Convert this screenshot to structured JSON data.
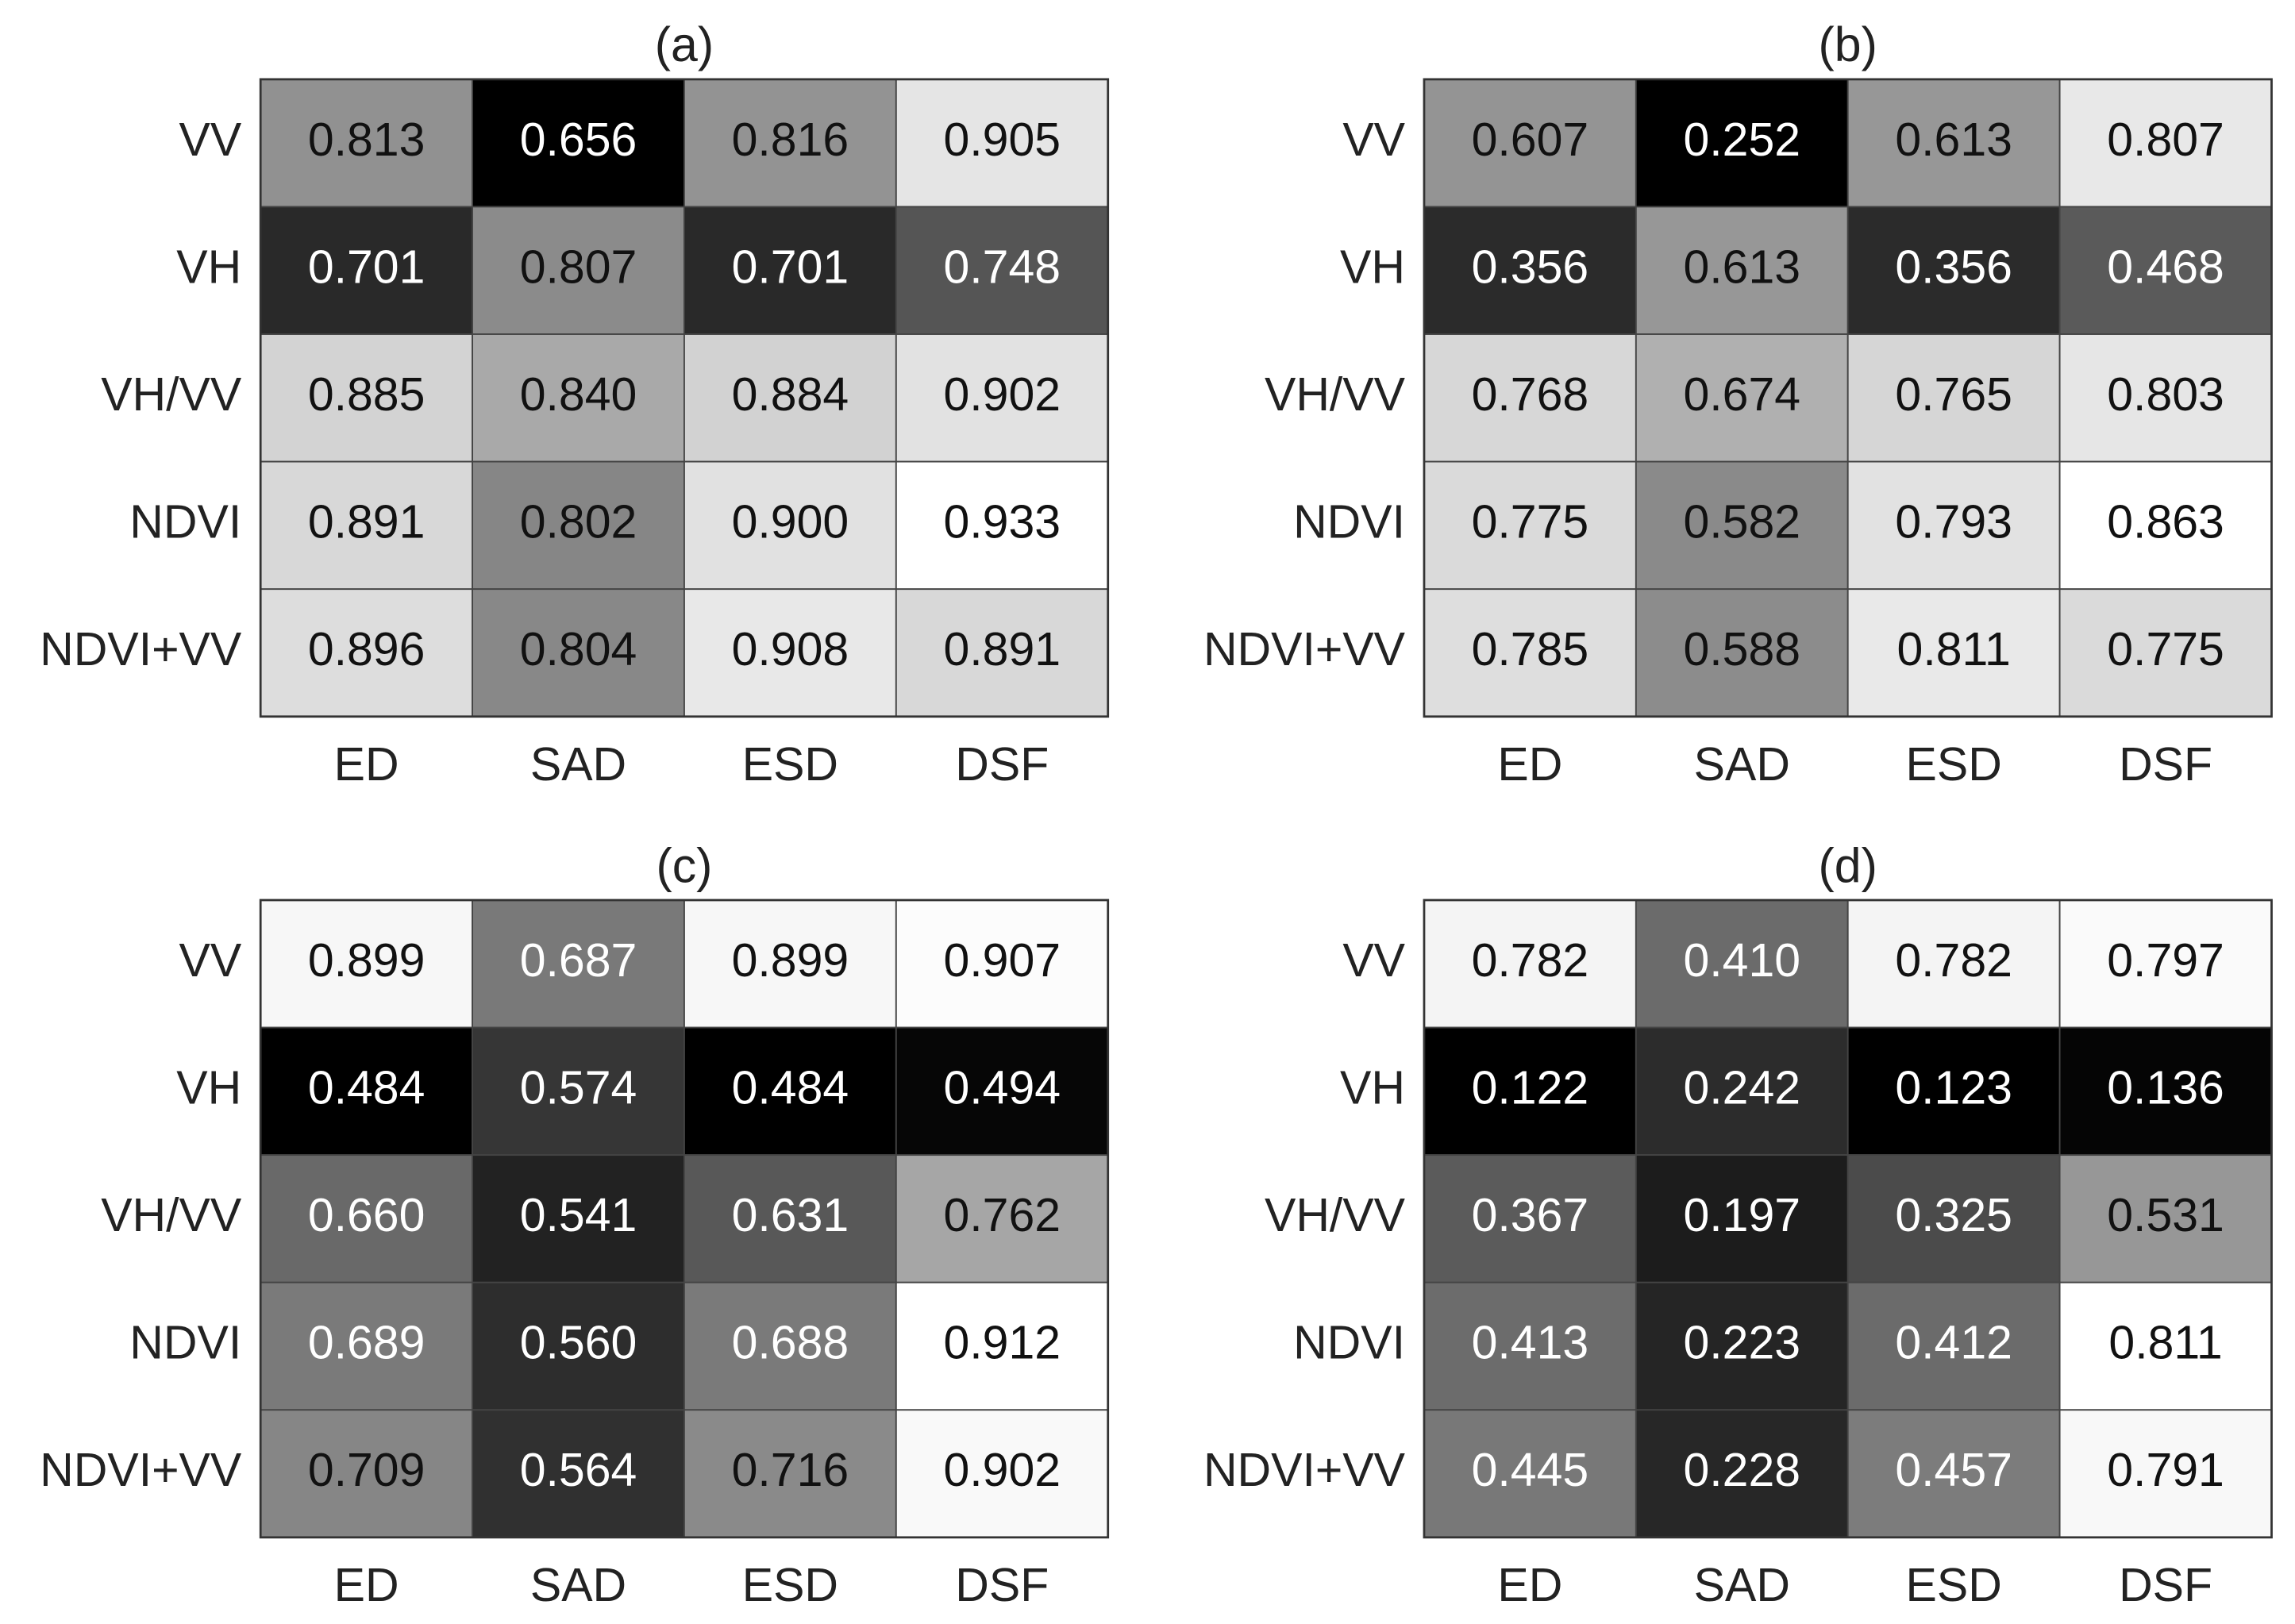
{
  "chart_data": [
    {
      "type": "heatmap",
      "title": "(a)",
      "colormap": "gray",
      "x_categories": [
        "ED",
        "SAD",
        "ESD",
        "DSF"
      ],
      "y_categories": [
        "VV",
        "VH",
        "VH/VV",
        "NDVI",
        "NDVI+VV"
      ],
      "values": [
        [
          0.813,
          0.656,
          0.816,
          0.905
        ],
        [
          0.701,
          0.807,
          0.701,
          0.748
        ],
        [
          0.885,
          0.84,
          0.884,
          0.902
        ],
        [
          0.891,
          0.802,
          0.9,
          0.933
        ],
        [
          0.896,
          0.804,
          0.908,
          0.891
        ]
      ],
      "value_labels": [
        [
          "0.813",
          "0.656",
          "0.816",
          "0.905"
        ],
        [
          "0.701",
          "0.807",
          "0.701",
          "0.748"
        ],
        [
          "0.885",
          "0.840",
          "0.884",
          "0.902"
        ],
        [
          "0.891",
          "0.802",
          "0.900",
          "0.933"
        ],
        [
          "0.896",
          "0.804",
          "0.908",
          "0.891"
        ]
      ]
    },
    {
      "type": "heatmap",
      "title": "(b)",
      "colormap": "gray",
      "x_categories": [
        "ED",
        "SAD",
        "ESD",
        "DSF"
      ],
      "y_categories": [
        "VV",
        "VH",
        "VH/VV",
        "NDVI",
        "NDVI+VV"
      ],
      "values": [
        [
          0.607,
          0.252,
          0.613,
          0.807
        ],
        [
          0.356,
          0.613,
          0.356,
          0.468
        ],
        [
          0.768,
          0.674,
          0.765,
          0.803
        ],
        [
          0.775,
          0.582,
          0.793,
          0.863
        ],
        [
          0.785,
          0.588,
          0.811,
          0.775
        ]
      ],
      "value_labels": [
        [
          "0.607",
          "0.252",
          "0.613",
          "0.807"
        ],
        [
          "0.356",
          "0.613",
          "0.356",
          "0.468"
        ],
        [
          "0.768",
          "0.674",
          "0.765",
          "0.803"
        ],
        [
          "0.775",
          "0.582",
          "0.793",
          "0.863"
        ],
        [
          "0.785",
          "0.588",
          "0.811",
          "0.775"
        ]
      ]
    },
    {
      "type": "heatmap",
      "title": "(c)",
      "colormap": "gray",
      "x_categories": [
        "ED",
        "SAD",
        "ESD",
        "DSF"
      ],
      "y_categories": [
        "VV",
        "VH",
        "VH/VV",
        "NDVI",
        "NDVI+VV"
      ],
      "values": [
        [
          0.899,
          0.687,
          0.899,
          0.907
        ],
        [
          0.484,
          0.574,
          0.484,
          0.494
        ],
        [
          0.66,
          0.541,
          0.631,
          0.762
        ],
        [
          0.689,
          0.56,
          0.688,
          0.912
        ],
        [
          0.709,
          0.564,
          0.716,
          0.902
        ]
      ],
      "value_labels": [
        [
          "0.899",
          "0.687",
          "0.899",
          "0.907"
        ],
        [
          "0.484",
          "0.574",
          "0.484",
          "0.494"
        ],
        [
          "0.660",
          "0.541",
          "0.631",
          "0.762"
        ],
        [
          "0.689",
          "0.560",
          "0.688",
          "0.912"
        ],
        [
          "0.709",
          "0.564",
          "0.716",
          "0.902"
        ]
      ]
    },
    {
      "type": "heatmap",
      "title": "(d)",
      "colormap": "gray",
      "x_categories": [
        "ED",
        "SAD",
        "ESD",
        "DSF"
      ],
      "y_categories": [
        "VV",
        "VH",
        "VH/VV",
        "NDVI",
        "NDVI+VV"
      ],
      "values": [
        [
          0.782,
          0.41,
          0.782,
          0.797
        ],
        [
          0.122,
          0.242,
          0.123,
          0.136
        ],
        [
          0.367,
          0.197,
          0.325,
          0.531
        ],
        [
          0.413,
          0.223,
          0.412,
          0.811
        ],
        [
          0.445,
          0.228,
          0.457,
          0.791
        ]
      ],
      "value_labels": [
        [
          "0.782",
          "0.410",
          "0.782",
          "0.797"
        ],
        [
          "0.122",
          "0.242",
          "0.123",
          "0.136"
        ],
        [
          "0.367",
          "0.197",
          "0.325",
          "0.531"
        ],
        [
          "0.413",
          "0.223",
          "0.412",
          "0.811"
        ],
        [
          "0.445",
          "0.228",
          "0.457",
          "0.791"
        ]
      ]
    }
  ]
}
